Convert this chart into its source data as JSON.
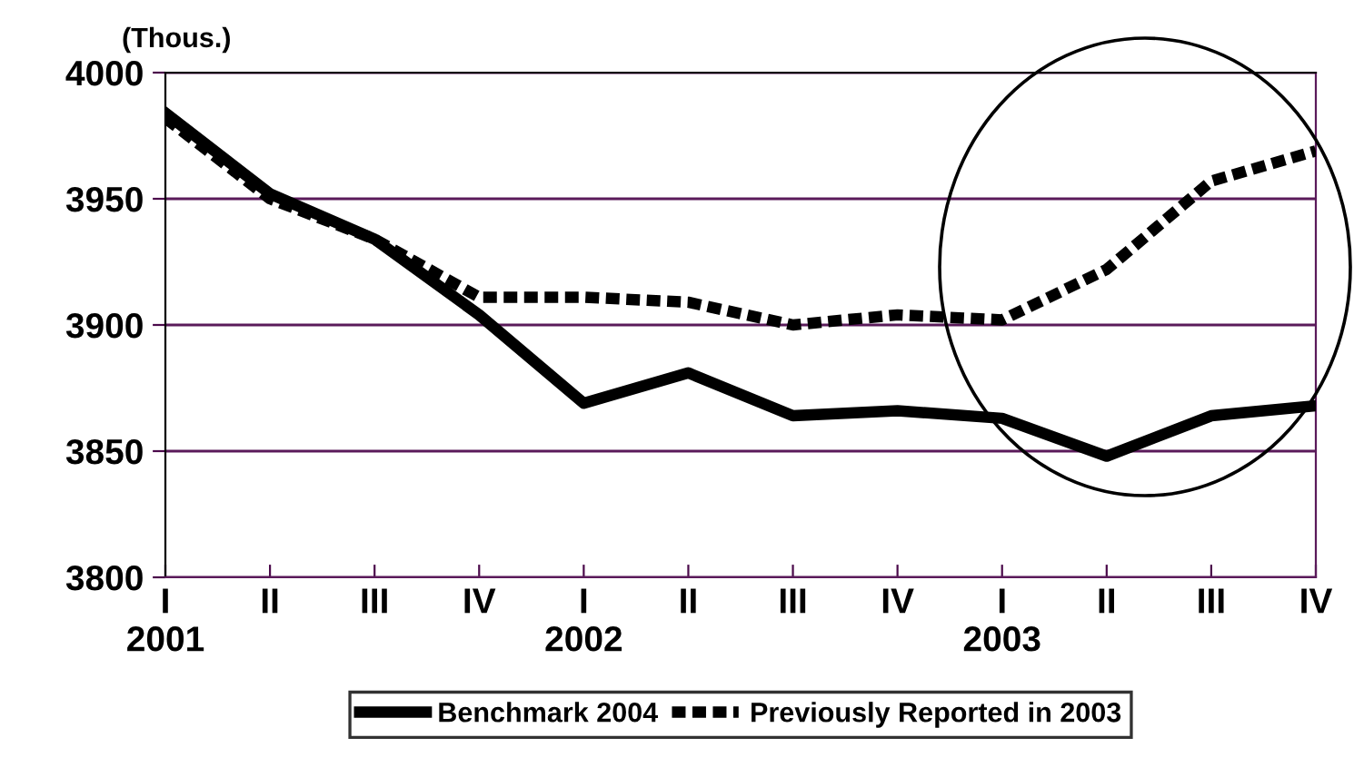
{
  "chart_data": {
    "type": "line",
    "ylabel": "(Thous.)",
    "categories": [
      "I\n2001",
      "II",
      "III",
      "IV",
      "I\n2002",
      "II",
      "III",
      "IV",
      "I\n2003",
      "II",
      "III",
      "IV"
    ],
    "series": [
      {
        "name": "Benchmark 2004",
        "color": "#000000",
        "line_style": "solid",
        "values": [
          3984,
          3952,
          3934,
          3904,
          3869,
          3881,
          3864,
          3866,
          3863,
          3848,
          3864,
          3868
        ]
      },
      {
        "name": "Previously Reported in 2003",
        "color": "#000000",
        "line_style": "dotted",
        "values": [
          3982,
          3950,
          3934,
          3911,
          3911,
          3909,
          3900,
          3904,
          3902,
          3922,
          3957,
          3969
        ]
      }
    ],
    "ylim": [
      3800,
      4000
    ],
    "yticks": [
      3800,
      3850,
      3900,
      3950,
      4000
    ],
    "grid": "y",
    "legend": "bottom",
    "marker": "none"
  }
}
